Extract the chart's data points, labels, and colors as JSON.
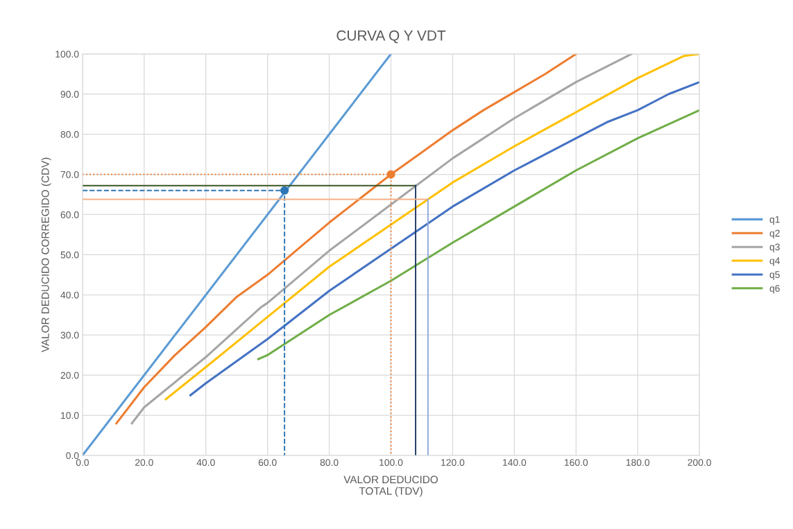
{
  "chart_data": {
    "type": "line",
    "title": "CURVA Q Y VDT",
    "xlabel": "VALOR DEDUCIDO\nTOTAL (TDV)",
    "ylabel": "VALOR DEDUCIDO CORREGIDO (CDV)",
    "xlim": [
      0,
      200
    ],
    "ylim": [
      0,
      100
    ],
    "xticks": [
      {
        "value": 0,
        "label": "0.0"
      },
      {
        "value": 20,
        "label": "20.0"
      },
      {
        "value": 40,
        "label": "40.0"
      },
      {
        "value": 60,
        "label": "60.0"
      },
      {
        "value": 80,
        "label": "80.0"
      },
      {
        "value": 100,
        "label": "100.0"
      },
      {
        "value": 120,
        "label": "120.0"
      },
      {
        "value": 140,
        "label": "140.0"
      },
      {
        "value": 160,
        "label": "160.0"
      },
      {
        "value": 180,
        "label": "180.0"
      },
      {
        "value": 200,
        "label": "200.0"
      }
    ],
    "yticks": [
      {
        "value": 0,
        "label": "0.0"
      },
      {
        "value": 10,
        "label": "10.0"
      },
      {
        "value": 20,
        "label": "20.0"
      },
      {
        "value": 30,
        "label": "30.0"
      },
      {
        "value": 40,
        "label": "40.0"
      },
      {
        "value": 50,
        "label": "50.0"
      },
      {
        "value": 60,
        "label": "60.0"
      },
      {
        "value": 70,
        "label": "70.0"
      },
      {
        "value": 80,
        "label": "80.0"
      },
      {
        "value": 90,
        "label": "90.0"
      },
      {
        "value": 100,
        "label": "100.0"
      }
    ],
    "grid": true,
    "legend": "right",
    "marker": "none",
    "line_style": "solid",
    "series": [
      {
        "name": "q1",
        "color": "#5b9bd5",
        "x": [
          0,
          100
        ],
        "values": [
          0,
          100
        ]
      },
      {
        "name": "q2",
        "color": "#ed7d31",
        "x": [
          11,
          20,
          30,
          40,
          50,
          60,
          70,
          80,
          90,
          100,
          110,
          120,
          130,
          140,
          150,
          160
        ],
        "values": [
          8,
          17,
          25,
          32,
          39.5,
          45,
          51.5,
          58,
          64,
          70,
          75.5,
          81,
          86,
          90.5,
          95,
          100
        ]
      },
      {
        "name": "q3",
        "color": "#a5a5a5",
        "x": [
          16,
          20,
          40,
          58,
          60,
          80,
          100,
          120,
          140,
          160,
          178
        ],
        "values": [
          8,
          12,
          24.5,
          37,
          38,
          51,
          62.5,
          74,
          84,
          93,
          100
        ]
      },
      {
        "name": "q4",
        "color": "#ffc000",
        "x": [
          27,
          40,
          60,
          80,
          100,
          120,
          140,
          160,
          180,
          195,
          200
        ],
        "values": [
          14,
          22,
          34.5,
          47,
          57.5,
          68,
          77,
          85.5,
          94,
          99.5,
          100
        ]
      },
      {
        "name": "q5",
        "color": "#4472c4",
        "x": [
          35,
          40,
          60,
          80,
          100,
          120,
          140,
          160,
          170,
          180,
          190,
          200
        ],
        "values": [
          15,
          18,
          29,
          41,
          51.5,
          62,
          71,
          79,
          83,
          86,
          90,
          93
        ]
      },
      {
        "name": "q6",
        "color": "#70ad47",
        "x": [
          57,
          60,
          80,
          100,
          120,
          140,
          160,
          180,
          200
        ],
        "values": [
          24,
          25,
          35,
          43.5,
          53,
          62,
          71,
          79,
          86
        ]
      },
      {
        "color": "#ed7d31",
        "x": [
          0,
          100,
          100
        ],
        "values": [
          70,
          70,
          0
        ],
        "line_style": "dotted"
      },
      {
        "color": "#2e75b6",
        "x": [
          0,
          65.5,
          65.5
        ],
        "values": [
          66,
          66,
          0
        ],
        "line_style": "dashed"
      },
      {
        "color": "#375623",
        "x": [
          0,
          108
        ],
        "values": [
          67.2,
          67.2
        ]
      },
      {
        "color": "#1f3864",
        "x": [
          108,
          108
        ],
        "values": [
          67.2,
          0
        ]
      },
      {
        "color": "#f4b183",
        "x": [
          0,
          112
        ],
        "values": [
          63.8,
          63.8
        ]
      },
      {
        "color": "#8faadc",
        "x": [
          112,
          112
        ],
        "values": [
          63.8,
          0
        ]
      },
      {
        "type": "scatter",
        "color": "#2e75b6",
        "x": [
          65.5
        ],
        "values": [
          66
        ],
        "marker": "circle"
      },
      {
        "type": "scatter",
        "color": "#ed7d31",
        "x": [
          100
        ],
        "values": [
          70
        ],
        "marker": "circle"
      }
    ]
  }
}
